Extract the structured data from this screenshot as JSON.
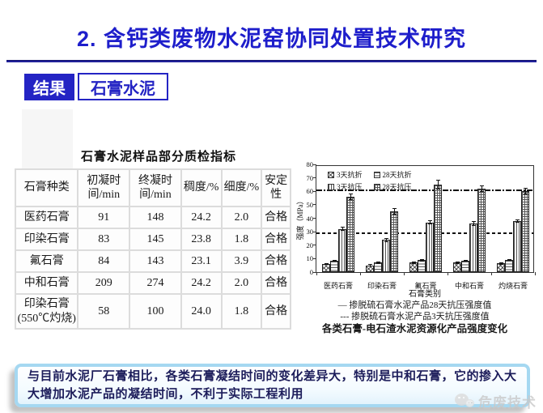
{
  "slide": {
    "title": "2. 含钙类废物水泥窑协同处置技术研究",
    "result_badge": "结果",
    "topic_box": "石膏水泥",
    "conclusion": "与目前水泥厂石膏相比，各类石膏凝结时间的变化差异大，特别是中和石膏，它的掺入大大增加水泥产品的凝结时间，不利于实际工程利用",
    "watermark": "危废技术",
    "colors": {
      "title_blue": "#1e1ecb",
      "divider_navy": "#20209a",
      "badge_bg": "#2424c4",
      "callout_border": "#a5d8f1",
      "conclusion_text": "#1c1c5a"
    }
  },
  "table": {
    "title": "石膏水泥样品部分质检指标",
    "headers": [
      "石膏种类",
      "初凝时间/min",
      "终凝时间/min",
      "稠度/%",
      "细度/%",
      "安定性"
    ],
    "rows": [
      [
        "医药石膏",
        "91",
        "148",
        "24.2",
        "2.0",
        "合格"
      ],
      [
        "印染石膏",
        "83",
        "145",
        "23.8",
        "1.8",
        "合格"
      ],
      [
        "氟石膏",
        "84",
        "143",
        "23.1",
        "3.9",
        "合格"
      ],
      [
        "中和石膏",
        "209",
        "274",
        "24.2",
        "2.0",
        "合格"
      ],
      [
        "印染石膏\n(550℃灼烧)",
        "58",
        "100",
        "24.0",
        "1.8",
        "合格"
      ]
    ]
  },
  "chart_data": {
    "type": "bar",
    "title": "各类石膏-电石渣水泥资源化产品强度变化",
    "xlabel": "石膏类别",
    "ylabel": "强度（MPa）",
    "ylim": [
      0,
      80
    ],
    "ytick_step": 10,
    "grid": false,
    "legend_position": "top-left",
    "categories": [
      "医药石膏",
      "印染石膏",
      "氟石膏",
      "中和石膏",
      "灼烧石膏"
    ],
    "series": [
      {
        "name": "3天抗折",
        "pattern": "diagonal-crosshatch",
        "values": [
          6,
          5,
          7,
          7,
          6.5
        ],
        "errors": [
          0.5,
          0.5,
          0.5,
          0.5,
          0.5
        ]
      },
      {
        "name": "28天抗折",
        "pattern": "horizontal-lines",
        "values": [
          8.5,
          7,
          9,
          8.5,
          9
        ],
        "errors": [
          0.5,
          0.8,
          0.6,
          0.5,
          0.5
        ]
      },
      {
        "name": "3天抗压",
        "pattern": "vertical-lines",
        "values": [
          32,
          24,
          37,
          36,
          38
        ],
        "errors": [
          1.2,
          1.2,
          1.5,
          1.5,
          1.0
        ]
      },
      {
        "name": "28天抗压",
        "pattern": "grid",
        "values": [
          56,
          45,
          65,
          62,
          60
        ],
        "errors": [
          2.0,
          2.0,
          3.5,
          2.0,
          2.0
        ]
      }
    ],
    "reference_lines": [
      {
        "value": 61,
        "style": "dashdot",
        "label": "掺脱硫石膏水泥产品28天抗压强度值"
      },
      {
        "value": 29,
        "style": "dashed",
        "label": "掺脱硫石膏水泥产品3天抗压强度值"
      }
    ]
  },
  "chart_captions": {
    "line1": "— 掺脱硫石膏水泥产品28天抗压强度值",
    "line2": "--- 掺脱硫石膏水泥产品3天抗压强度值",
    "line3": "各类石膏-电石渣水泥资源化产品强度变化"
  }
}
